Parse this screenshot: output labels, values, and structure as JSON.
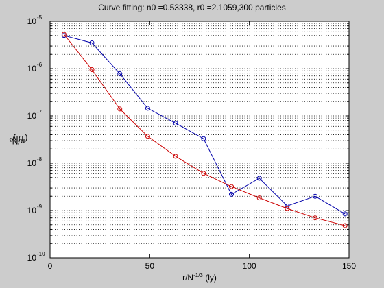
{
  "chart_data": {
    "type": "line",
    "title": "Curve fitting: n0 =0.53338, r0 =2.1059,300 particles",
    "xlabel": {
      "prefix": "r/N",
      "sup": "-1/3",
      "suffix": " (ly)"
    },
    "ylabel": {
      "prefix": "n/N",
      "sup": "2",
      "suffix": " (1/ly³"
    },
    "x_scale": "linear",
    "y_scale": "log",
    "xlim": [
      0,
      150
    ],
    "ylim": [
      1e-10,
      1e-05
    ],
    "x_ticks": [
      0,
      50,
      100,
      150
    ],
    "y_ticks": [
      {
        "base": "10",
        "exp": "-10",
        "value": 1e-10
      },
      {
        "base": "10",
        "exp": "-9",
        "value": 1e-09
      },
      {
        "base": "10",
        "exp": "-8",
        "value": 1e-08
      },
      {
        "base": "10",
        "exp": "-7",
        "value": 1e-07
      },
      {
        "base": "10",
        "exp": "-6",
        "value": 1e-06
      },
      {
        "base": "10",
        "exp": "-5",
        "value": 1e-05
      }
    ],
    "grid": "horizontal-major-and-minor",
    "series": [
      {
        "color": "#0000aa",
        "marker": "circle",
        "x": [
          7,
          21,
          35,
          49,
          63,
          77,
          91,
          105,
          119,
          133,
          148
        ],
        "y": [
          5e-06,
          3.5e-06,
          7.8e-07,
          1.45e-07,
          7e-08,
          3.3e-08,
          2.2e-09,
          4.8e-09,
          1.25e-09,
          2e-09,
          8.5e-10
        ]
      },
      {
        "color": "#cc0000",
        "marker": "circle",
        "x": [
          7,
          21,
          35,
          49,
          63,
          77,
          91,
          105,
          119,
          133,
          148
        ],
        "y": [
          5.3e-06,
          9.5e-07,
          1.4e-07,
          3.7e-08,
          1.4e-08,
          6.1e-09,
          3.2e-09,
          1.85e-09,
          1.1e-09,
          7e-10,
          4.8e-10
        ]
      }
    ]
  }
}
